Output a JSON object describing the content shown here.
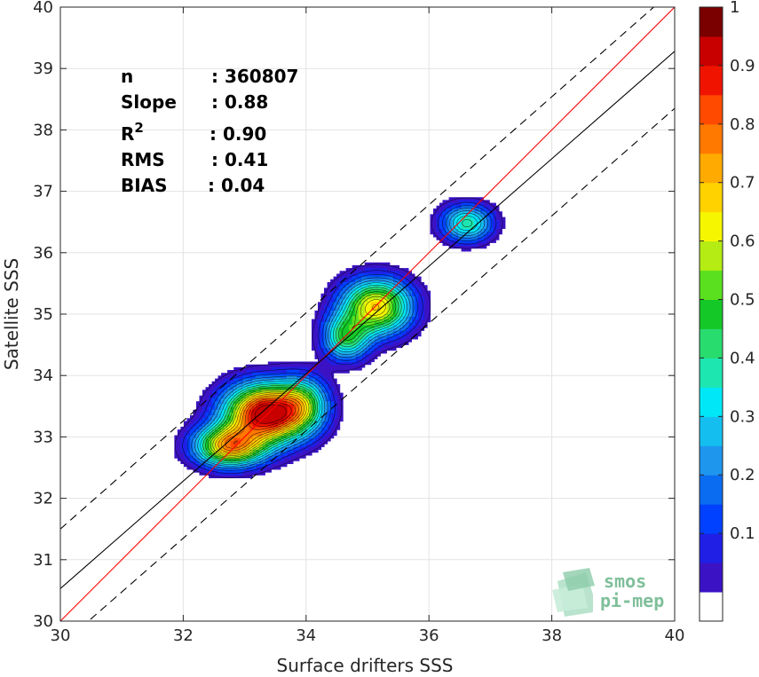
{
  "chart_data": {
    "type": "heatmap",
    "title": "",
    "xlabel": "Surface drifters SSS",
    "ylabel": "Satellite SSS",
    "xlim": [
      30,
      40
    ],
    "ylim": [
      30,
      40
    ],
    "xticks": [
      "30",
      "32",
      "34",
      "36",
      "38",
      "40"
    ],
    "yticks": [
      "30",
      "31",
      "32",
      "33",
      "34",
      "35",
      "36",
      "37",
      "38",
      "39",
      "40"
    ],
    "grid": true,
    "stats": [
      {
        "label": "n",
        "value": ": 360807"
      },
      {
        "label": "Slope",
        "value": ": 0.88"
      },
      {
        "label": "R",
        "sup": "2",
        "value": ": 0.90"
      },
      {
        "label": "RMS",
        "value": ": 0.41"
      },
      {
        "label": "BIAS",
        "value": ": 0.04"
      }
    ],
    "reference_lines": {
      "identity": {
        "color": "#ff0000",
        "from": [
          30,
          30
        ],
        "to": [
          40,
          40
        ]
      },
      "fit": {
        "color": "#000000",
        "from": [
          30,
          30.53
        ],
        "to": [
          40,
          39.28
        ]
      },
      "fit_plus": {
        "color": "#000000",
        "dash": true,
        "from": [
          30,
          31.5
        ],
        "to": [
          40,
          40.3
        ]
      },
      "fit_minus": {
        "color": "#000000",
        "dash": true,
        "from": [
          30,
          29.6
        ],
        "to": [
          40,
          38.35
        ]
      }
    },
    "density_blobs": [
      {
        "cx": 33.35,
        "cy": 33.38,
        "rx": 0.45,
        "ry": 0.32,
        "weight": 1.0
      },
      {
        "cx": 32.75,
        "cy": 32.85,
        "rx": 0.38,
        "ry": 0.22,
        "weight": 0.72
      },
      {
        "cx": 33.95,
        "cy": 33.55,
        "rx": 0.28,
        "ry": 0.3,
        "weight": 0.34
      },
      {
        "cx": 35.15,
        "cy": 35.12,
        "rx": 0.38,
        "ry": 0.3,
        "weight": 0.7
      },
      {
        "cx": 34.65,
        "cy": 34.62,
        "rx": 0.25,
        "ry": 0.25,
        "weight": 0.45
      },
      {
        "cx": 36.62,
        "cy": 36.48,
        "rx": 0.28,
        "ry": 0.2,
        "weight": 0.42
      }
    ],
    "colorbar": {
      "ticks": [
        "0.1",
        "0.2",
        "0.3",
        "0.4",
        "0.5",
        "0.6",
        "0.7",
        "0.8",
        "0.9",
        "1"
      ],
      "levels": [
        0.05,
        0.1,
        0.15,
        0.2,
        0.25,
        0.3,
        0.35,
        0.4,
        0.45,
        0.5,
        0.55,
        0.6,
        0.65,
        0.7,
        0.75,
        0.8,
        0.85,
        0.9,
        0.95,
        1.0
      ],
      "colors": [
        "#5a0aaa",
        "#3b12c4",
        "#1f1fe6",
        "#0040ff",
        "#0a6cf0",
        "#1e96ee",
        "#14bff0",
        "#00e8f8",
        "#1ee6b0",
        "#28dc6e",
        "#14c828",
        "#5ae01e",
        "#b4ec14",
        "#f6f600",
        "#ffd200",
        "#ffaa00",
        "#ff7800",
        "#ff4a00",
        "#f01400",
        "#c80000",
        "#7a0000"
      ]
    }
  },
  "logo": {
    "line1": "smos",
    "line2": "pi-mep"
  }
}
